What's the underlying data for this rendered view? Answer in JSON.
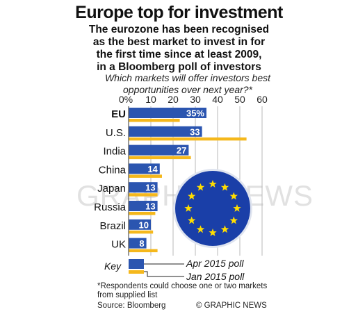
{
  "title": "Europe top for investment",
  "subtitle": [
    "The eurozone has been recognised",
    "as the best market to invest in for",
    "the first time since at least 2009,",
    "in a Bloomberg poll of investors"
  ],
  "question": [
    "Which markets will offer investors best",
    "opportunities over next year?*"
  ],
  "colors": {
    "apr": "#2b55b0",
    "jan": "#f5b81c",
    "eu_blue": "#1a3fa8",
    "eu_star": "#ffdd00"
  },
  "key": {
    "label": "Key",
    "apr": "Apr 2015 poll",
    "jan": "Jan 2015 poll"
  },
  "footnote": [
    "*Respondents could choose one or two markets",
    "from supplied list"
  ],
  "source": "Source: Bloomberg",
  "credit": "© GRAPHIC NEWS",
  "watermark": "GRAPHIC NEWS",
  "chart_data": {
    "type": "bar",
    "orientation": "horizontal",
    "categories": [
      "EU",
      "U.S.",
      "India",
      "China",
      "Japan",
      "Russia",
      "Brazil",
      "UK"
    ],
    "series": [
      {
        "name": "Apr 2015 poll",
        "values": [
          35,
          33,
          27,
          14,
          13,
          13,
          10,
          8
        ],
        "labels": [
          "35%",
          "33",
          "27",
          "14",
          "13",
          "13",
          "10",
          "8"
        ]
      },
      {
        "name": "Jan 2015 poll",
        "values": [
          23,
          53,
          28,
          15,
          13,
          12,
          11,
          13
        ]
      }
    ],
    "xticks": [
      "0%",
      "10",
      "20",
      "30",
      "40",
      "50",
      "60"
    ],
    "xlim": [
      0,
      60
    ],
    "grid": true
  }
}
